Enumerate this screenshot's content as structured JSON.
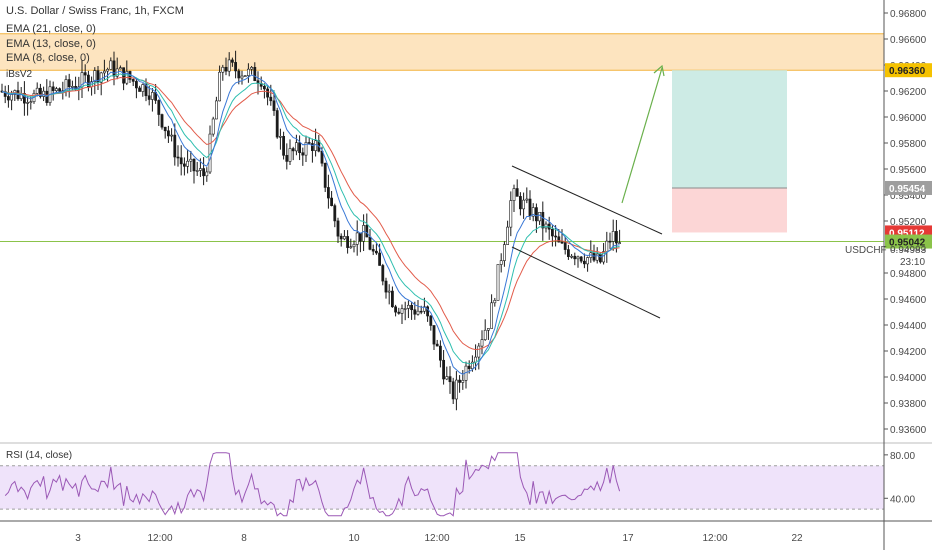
{
  "chart_data": [
    {
      "type": "candlestick",
      "title": "U.S. Dollar / Swiss Franc, 1h, FXCM",
      "symbol": "USDCHF",
      "indicators": [
        "EMA (21, close, 0)",
        "EMA (13, close, 0)",
        "EMA (8, close, 0)",
        "iBsV2"
      ],
      "ylim": [
        0.935,
        0.969
      ],
      "y_ticks": [
        "0.96800",
        "0.96600",
        "0.96400",
        "0.96200",
        "0.96000",
        "0.95800",
        "0.95600",
        "0.95400",
        "0.95200",
        "0.95000",
        "0.94800",
        "0.94600",
        "0.94400",
        "0.94200",
        "0.94000",
        "0.93800",
        "0.93600"
      ],
      "x_ticks": [
        "3",
        "12:00",
        "8",
        "10",
        "12:00",
        "15",
        "17",
        "12:00",
        "22"
      ],
      "price_labels": [
        {
          "text": "0.96360",
          "price": 0.9636,
          "color": "#f5c200",
          "text_color": "#222222"
        },
        {
          "text": "0.95454",
          "price": 0.95454,
          "color": "#9e9e9e",
          "text_color": "#ffffff"
        },
        {
          "text": "0.95112",
          "price": 0.95112,
          "color": "#e53935",
          "text_color": "#ffffff"
        },
        {
          "text": "0.95042",
          "price": 0.95042,
          "color": "#8bc34a",
          "text_color": "#222222"
        }
      ],
      "last_price": {
        "symbol": "USDCHF",
        "value": "0.94983",
        "countdown": "23:10"
      },
      "resistance_zone": [
        0.9636,
        0.9664
      ],
      "support_line": 0.95042,
      "target_zone": [
        0.95454,
        0.9636
      ],
      "stop_zone": [
        0.95112,
        0.95454
      ],
      "colors": {
        "zone": "#fde4bf",
        "target": "#cdebe5",
        "stop": "#fcd6d6",
        "support": "#8bc34a",
        "arrow": "#6ab04c",
        "ema21": "#e25c4b",
        "ema13": "#2fbfb0",
        "ema8": "#3a78d6"
      }
    },
    {
      "type": "line",
      "title": "RSI (14, close)",
      "ylim": [
        20,
        90
      ],
      "y_ticks": [
        "80.00",
        "40.00"
      ],
      "band": [
        30,
        70
      ],
      "colors": {
        "line": "#9b59b6",
        "band": "#efe3fa"
      }
    }
  ]
}
